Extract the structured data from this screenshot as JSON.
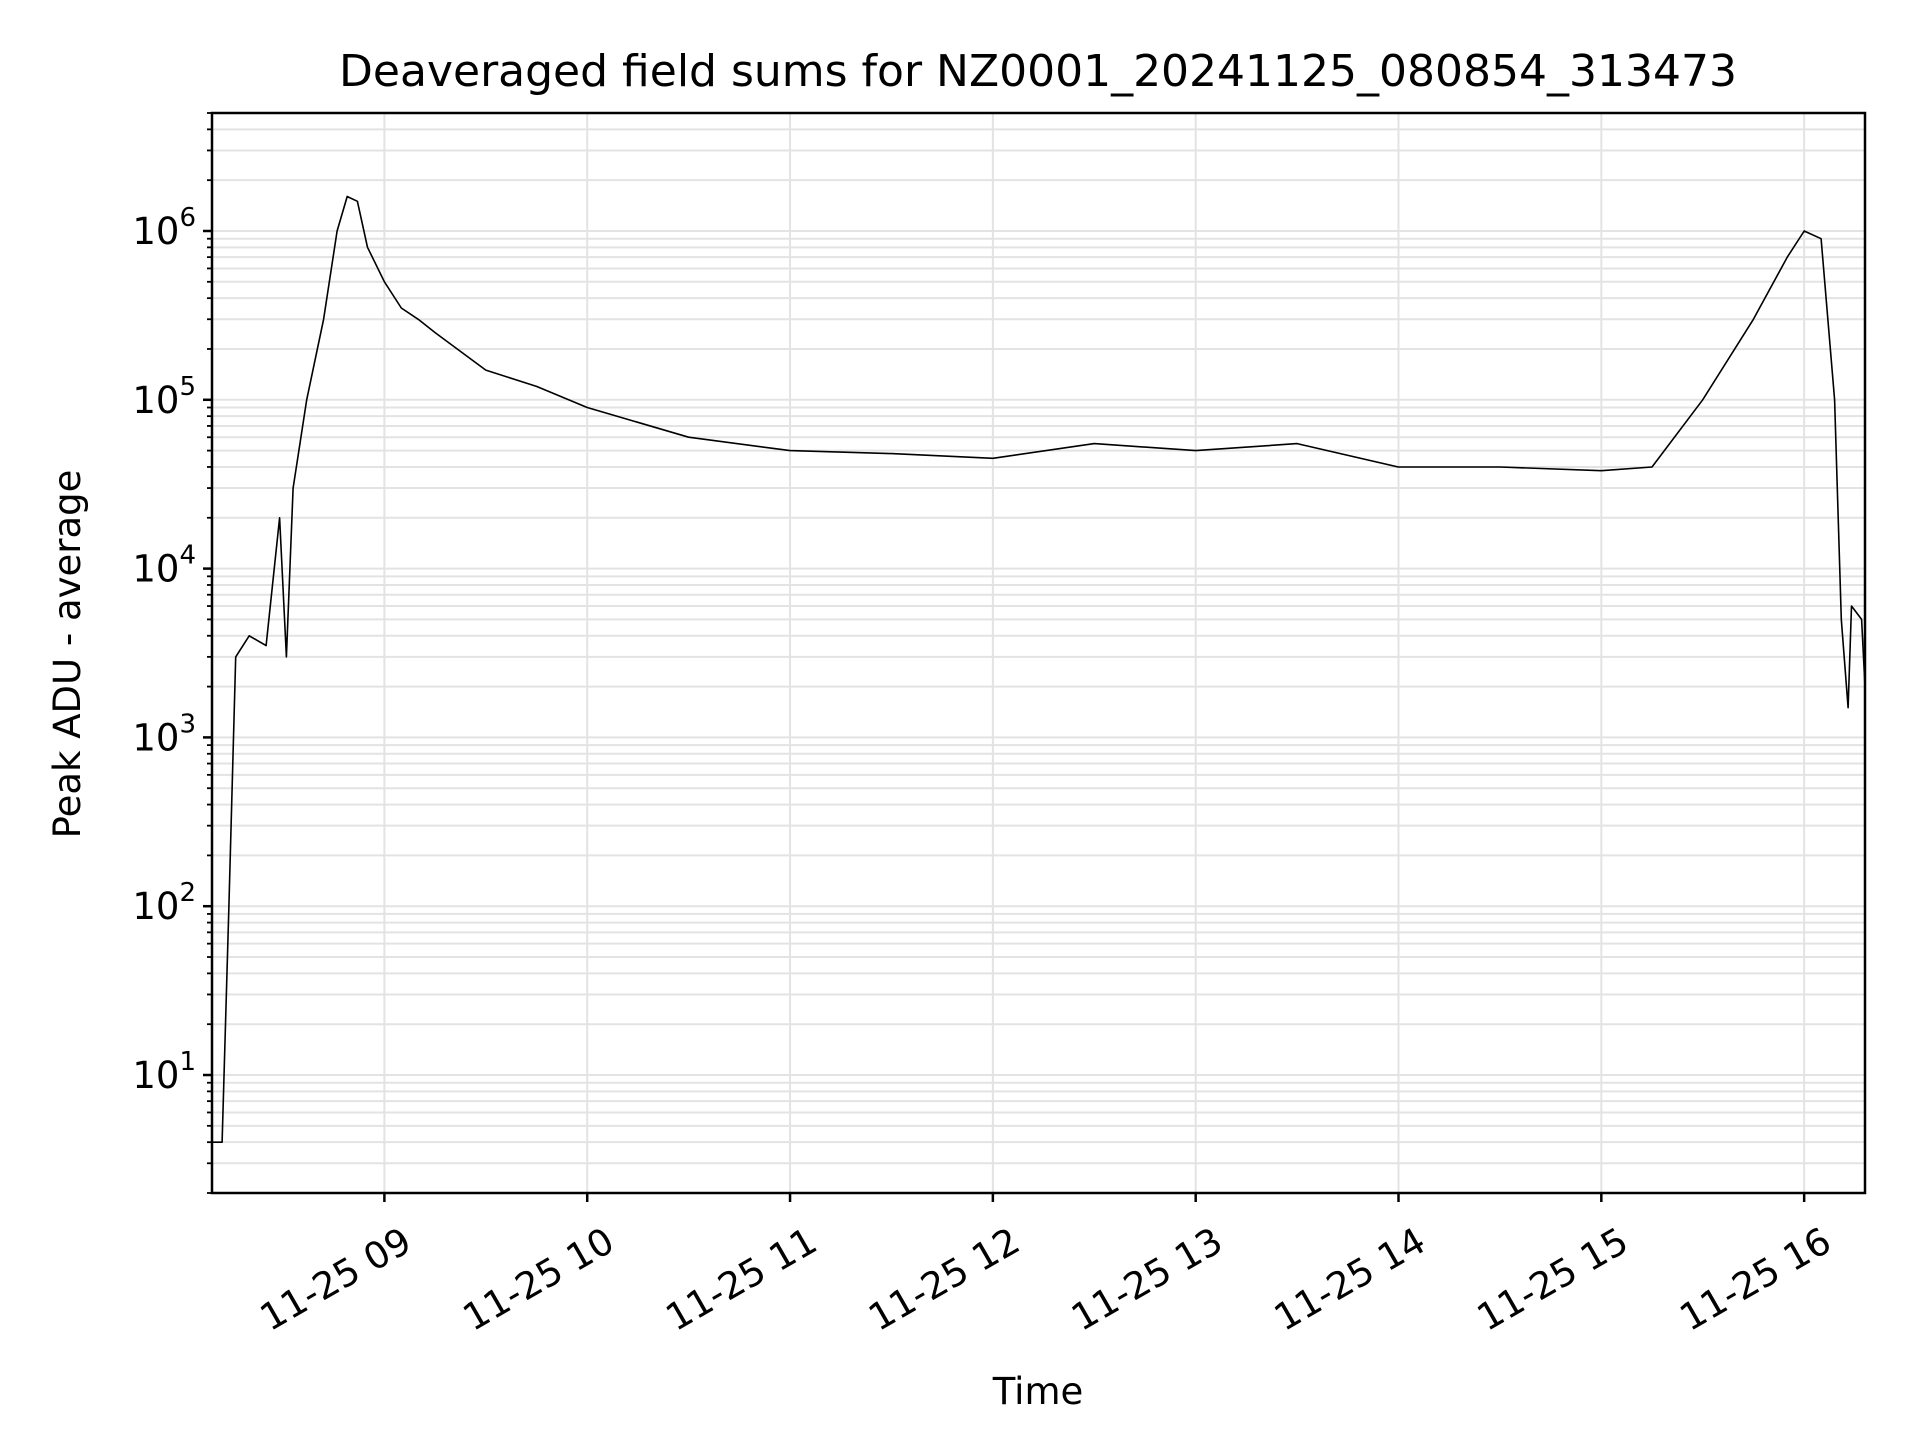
{
  "chart_data": {
    "type": "line",
    "title": "Deaveraged field sums for NZ0001_20241125_080854_313473",
    "xlabel": "Time",
    "ylabel": "Peak ADU - average",
    "yscale": "log",
    "xlim": [
      "2024-11-25 08:09",
      "2024-11-25 16:18"
    ],
    "ylim": [
      2,
      5000000
    ],
    "grid": true,
    "x_ticks": [
      "11-25 09",
      "11-25 10",
      "11-25 11",
      "11-25 12",
      "11-25 13",
      "11-25 14",
      "11-25 15",
      "11-25 16"
    ],
    "y_ticks": [
      {
        "base": "10",
        "exp": "1",
        "value": 10
      },
      {
        "base": "10",
        "exp": "2",
        "value": 100
      },
      {
        "base": "10",
        "exp": "3",
        "value": 1000
      },
      {
        "base": "10",
        "exp": "4",
        "value": 10000
      },
      {
        "base": "10",
        "exp": "5",
        "value": 100000
      },
      {
        "base": "10",
        "exp": "6",
        "value": 1000000
      }
    ],
    "series": [
      {
        "color": "#000000",
        "points": [
          [
            "2024-11-25 08:09",
            4
          ],
          [
            "2024-11-25 08:12",
            4
          ],
          [
            "2024-11-25 08:14",
            100
          ],
          [
            "2024-11-25 08:16",
            3000
          ],
          [
            "2024-11-25 08:20",
            4000
          ],
          [
            "2024-11-25 08:25",
            3500
          ],
          [
            "2024-11-25 08:29",
            20000
          ],
          [
            "2024-11-25 08:31",
            3000
          ],
          [
            "2024-11-25 08:33",
            30000
          ],
          [
            "2024-11-25 08:37",
            100000
          ],
          [
            "2024-11-25 08:42",
            300000
          ],
          [
            "2024-11-25 08:46",
            1000000
          ],
          [
            "2024-11-25 08:49",
            1600000
          ],
          [
            "2024-11-25 08:52",
            1500000
          ],
          [
            "2024-11-25 08:55",
            800000
          ],
          [
            "2024-11-25 09:00",
            500000
          ],
          [
            "2024-11-25 09:05",
            350000
          ],
          [
            "2024-11-25 09:10",
            300000
          ],
          [
            "2024-11-25 09:15",
            250000
          ],
          [
            "2024-11-25 09:30",
            150000
          ],
          [
            "2024-11-25 09:45",
            120000
          ],
          [
            "2024-11-25 10:00",
            90000
          ],
          [
            "2024-11-25 10:30",
            60000
          ],
          [
            "2024-11-25 11:00",
            50000
          ],
          [
            "2024-11-25 11:30",
            48000
          ],
          [
            "2024-11-25 12:00",
            45000
          ],
          [
            "2024-11-25 12:30",
            55000
          ],
          [
            "2024-11-25 13:00",
            50000
          ],
          [
            "2024-11-25 13:30",
            55000
          ],
          [
            "2024-11-25 14:00",
            40000
          ],
          [
            "2024-11-25 14:30",
            40000
          ],
          [
            "2024-11-25 15:00",
            38000
          ],
          [
            "2024-11-25 15:15",
            40000
          ],
          [
            "2024-11-25 15:30",
            100000
          ],
          [
            "2024-11-25 15:45",
            300000
          ],
          [
            "2024-11-25 15:55",
            700000
          ],
          [
            "2024-11-25 16:00",
            1000000
          ],
          [
            "2024-11-25 16:05",
            900000
          ],
          [
            "2024-11-25 16:09",
            100000
          ],
          [
            "2024-11-25 16:11",
            5000
          ],
          [
            "2024-11-25 16:13",
            1500
          ],
          [
            "2024-11-25 16:14",
            6000
          ],
          [
            "2024-11-25 16:17",
            5000
          ],
          [
            "2024-11-25 16:18",
            2000
          ]
        ]
      }
    ]
  }
}
